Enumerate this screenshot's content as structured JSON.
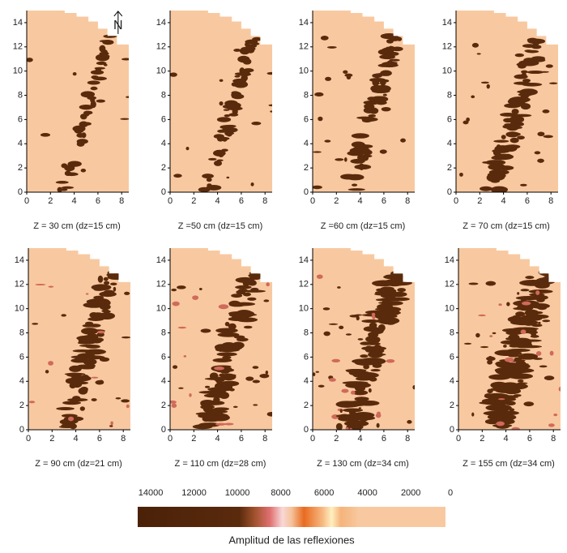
{
  "chart_data": [
    {
      "type": "heatmap",
      "title": "Z = 30 cm (dz=15 cm)",
      "annotation": "N",
      "xlim": [
        0,
        8.6
      ],
      "ylim": [
        0,
        15
      ],
      "xticks": [
        0,
        2,
        4,
        6,
        8
      ],
      "yticks": [
        0,
        2,
        4,
        6,
        8,
        10,
        12,
        14
      ]
    },
    {
      "type": "heatmap",
      "title": "Z =50 cm (dz=15 cm)",
      "xlim": [
        0,
        8.6
      ],
      "ylim": [
        0,
        15
      ],
      "xticks": [
        0,
        2,
        4,
        6,
        8
      ],
      "yticks": [
        0,
        2,
        4,
        6,
        8,
        10,
        12,
        14
      ]
    },
    {
      "type": "heatmap",
      "title": "Z =60 cm (dz=15 cm)",
      "xlim": [
        0,
        8.6
      ],
      "ylim": [
        0,
        15
      ],
      "xticks": [
        0,
        2,
        4,
        6,
        8
      ],
      "yticks": [
        0,
        2,
        4,
        6,
        8,
        10,
        12,
        14
      ]
    },
    {
      "type": "heatmap",
      "title": "Z = 70 cm (dz=15 cm)",
      "xlim": [
        0,
        8.6
      ],
      "ylim": [
        0,
        15
      ],
      "xticks": [
        0,
        2,
        4,
        6,
        8
      ],
      "yticks": [
        0,
        2,
        4,
        6,
        8,
        10,
        12,
        14
      ]
    },
    {
      "type": "heatmap",
      "title": "Z = 90 cm (dz=21 cm)",
      "xlim": [
        0,
        8.6
      ],
      "ylim": [
        0,
        15
      ],
      "xticks": [
        0,
        2,
        4,
        6,
        8
      ],
      "yticks": [
        0,
        2,
        4,
        6,
        8,
        10,
        12,
        14
      ]
    },
    {
      "type": "heatmap",
      "title": "Z = 110 cm (dz=28 cm)",
      "xlim": [
        0,
        8.6
      ],
      "ylim": [
        0,
        15
      ],
      "xticks": [
        0,
        2,
        4,
        6,
        8
      ],
      "yticks": [
        0,
        2,
        4,
        6,
        8,
        10,
        12,
        14
      ]
    },
    {
      "type": "heatmap",
      "title": "Z = 130 cm (dz=34 cm)",
      "xlim": [
        0,
        8.6
      ],
      "ylim": [
        0,
        15
      ],
      "xticks": [
        0,
        2,
        4,
        6,
        8
      ],
      "yticks": [
        0,
        2,
        4,
        6,
        8,
        10,
        12,
        14
      ]
    },
    {
      "type": "heatmap",
      "title": "Z = 155 cm (dz=34 cm)",
      "xlim": [
        0,
        8.6
      ],
      "ylim": [
        0,
        15
      ],
      "xticks": [
        0,
        2,
        4,
        6,
        8
      ],
      "yticks": [
        0,
        2,
        4,
        6,
        8,
        10,
        12,
        14
      ]
    },
    {
      "type": "colorbar",
      "title": "Amplitud de las reflexiones",
      "xlim": [
        14600,
        400
      ],
      "xticks": [
        14000,
        12000,
        10000,
        8000,
        6000,
        4000,
        2000,
        0
      ]
    }
  ]
}
